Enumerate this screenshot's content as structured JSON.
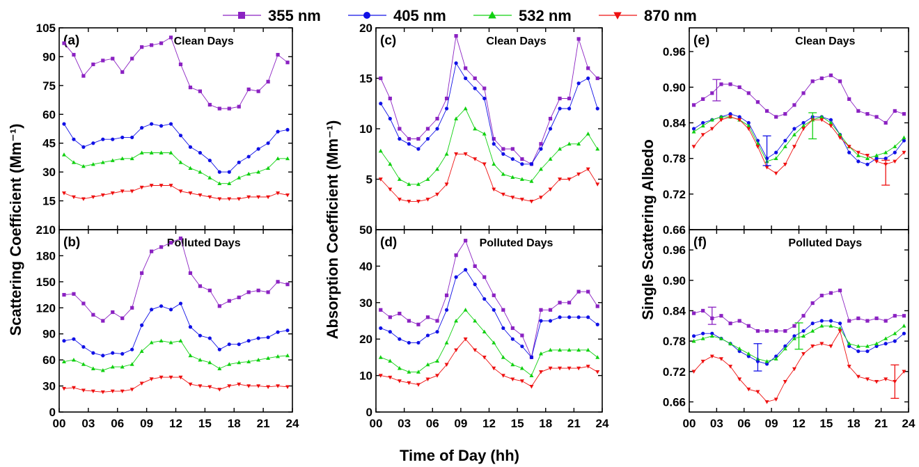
{
  "figure": {
    "xlabel": "Time of Day (hh)",
    "legend": [
      {
        "name": "355 nm",
        "color": "#8B22C2",
        "marker": "square"
      },
      {
        "name": "405 nm",
        "color": "#1010E6",
        "marker": "circle"
      },
      {
        "name": "532 nm",
        "color": "#10D010",
        "marker": "triangle-up"
      },
      {
        "name": "870 nm",
        "color": "#EE1010",
        "marker": "triangle-down"
      }
    ]
  },
  "chart_data": [
    {
      "type": "line",
      "panel": "(a)",
      "annotation": "Clean Days",
      "ylabel": "Scattering Coefficient (Mm⁻¹)",
      "xlim": [
        0,
        24
      ],
      "ylim": [
        0,
        105
      ],
      "xticks": [
        "00",
        "03",
        "06",
        "09",
        "12",
        "15",
        "18",
        "21",
        "24"
      ],
      "yticks": [
        "15",
        "30",
        "45",
        "60",
        "75",
        "90",
        "105"
      ],
      "x": [
        0.5,
        1.5,
        2.5,
        3.5,
        4.5,
        5.5,
        6.5,
        7.5,
        8.5,
        9.5,
        10.5,
        11.5,
        12.5,
        13.5,
        14.5,
        15.5,
        16.5,
        17.5,
        18.5,
        19.5,
        20.5,
        21.5,
        22.5,
        23.5
      ],
      "series": [
        {
          "name": "355 nm",
          "values": [
            97,
            91,
            80,
            86,
            88,
            89,
            82,
            89,
            95,
            96,
            97,
            100,
            86,
            74,
            72,
            65,
            63,
            63,
            64,
            73,
            72,
            77,
            91,
            87
          ]
        },
        {
          "name": "405 nm",
          "values": [
            55,
            47,
            43,
            45,
            47,
            47,
            48,
            48,
            53,
            55,
            54,
            55,
            49,
            43,
            40,
            36,
            30,
            30,
            35,
            38,
            42,
            45,
            51,
            52
          ]
        },
        {
          "name": "532 nm",
          "values": [
            39,
            35,
            33,
            34,
            35,
            36,
            37,
            37,
            40,
            40,
            40,
            40,
            35,
            32,
            30,
            27,
            24,
            24,
            27,
            29,
            30,
            32,
            37,
            37
          ]
        },
        {
          "name": "870 nm",
          "values": [
            19,
            17,
            16,
            17,
            18,
            19,
            20,
            20,
            22,
            23,
            23,
            23,
            20,
            19,
            18,
            17,
            16,
            16,
            16,
            17,
            17,
            17,
            19,
            18
          ]
        }
      ]
    },
    {
      "type": "line",
      "panel": "(b)",
      "annotation": "Polluted Days",
      "xlim": [
        0,
        24
      ],
      "ylim": [
        0,
        210
      ],
      "xticks": [
        "00",
        "03",
        "06",
        "09",
        "12",
        "15",
        "18",
        "21",
        "24"
      ],
      "yticks": [
        "0",
        "30",
        "60",
        "90",
        "120",
        "150",
        "180",
        "210"
      ],
      "x": [
        0.5,
        1.5,
        2.5,
        3.5,
        4.5,
        5.5,
        6.5,
        7.5,
        8.5,
        9.5,
        10.5,
        11.5,
        12.5,
        13.5,
        14.5,
        15.5,
        16.5,
        17.5,
        18.5,
        19.5,
        20.5,
        21.5,
        22.5,
        23.5
      ],
      "series": [
        {
          "name": "355 nm",
          "values": [
            135,
            136,
            125,
            112,
            105,
            115,
            108,
            120,
            160,
            185,
            190,
            195,
            200,
            160,
            145,
            140,
            122,
            128,
            132,
            138,
            140,
            138,
            150,
            147
          ]
        },
        {
          "name": "405 nm",
          "values": [
            82,
            84,
            75,
            68,
            65,
            68,
            67,
            72,
            100,
            118,
            122,
            118,
            125,
            98,
            88,
            85,
            72,
            78,
            78,
            82,
            85,
            86,
            92,
            94
          ]
        },
        {
          "name": "532 nm",
          "values": [
            58,
            60,
            55,
            50,
            48,
            52,
            52,
            55,
            70,
            80,
            82,
            80,
            82,
            65,
            60,
            57,
            50,
            55,
            57,
            58,
            60,
            62,
            64,
            65
          ]
        },
        {
          "name": "870 nm",
          "values": [
            27,
            28,
            25,
            24,
            23,
            24,
            24,
            26,
            33,
            38,
            40,
            40,
            40,
            32,
            30,
            29,
            26,
            30,
            32,
            30,
            30,
            29,
            30,
            29
          ]
        }
      ]
    },
    {
      "type": "line",
      "panel": "(c)",
      "annotation": "Clean Days",
      "ylabel": "Absorption Coefficient (Mm⁻¹)",
      "xlim": [
        0,
        24
      ],
      "ylim": [
        0,
        20
      ],
      "xticks": [
        "00",
        "03",
        "06",
        "09",
        "12",
        "15",
        "18",
        "21",
        "24"
      ],
      "yticks": [
        "5",
        "10",
        "15",
        "20"
      ],
      "x": [
        0.5,
        1.5,
        2.5,
        3.5,
        4.5,
        5.5,
        6.5,
        7.5,
        8.5,
        9.5,
        10.5,
        11.5,
        12.5,
        13.5,
        14.5,
        15.5,
        16.5,
        17.5,
        18.5,
        19.5,
        20.5,
        21.5,
        22.5,
        23.5
      ],
      "series": [
        {
          "name": "355 nm",
          "values": [
            15,
            13,
            10,
            9,
            9,
            10,
            11,
            13,
            19.2,
            16,
            15,
            14,
            9,
            8,
            8,
            7,
            6.5,
            8.5,
            11,
            13,
            13,
            18.9,
            16,
            15
          ]
        },
        {
          "name": "405 nm",
          "values": [
            12.5,
            11,
            9,
            8.5,
            8,
            9,
            10,
            12,
            16.5,
            15,
            14,
            13,
            8.5,
            7.5,
            7,
            6.5,
            6.5,
            8,
            10,
            12,
            12,
            14.5,
            15,
            12
          ]
        },
        {
          "name": "532 nm",
          "values": [
            7.8,
            6.5,
            5,
            4.5,
            4.5,
            5,
            6,
            7.5,
            11,
            12,
            10,
            9.5,
            6.5,
            5.5,
            5.2,
            5,
            4.8,
            6,
            7,
            8,
            8.5,
            8.5,
            9.5,
            8
          ]
        },
        {
          "name": "870 nm",
          "values": [
            5,
            4,
            3,
            2.8,
            2.8,
            3,
            3.5,
            4.5,
            7.5,
            7.5,
            7,
            6.5,
            4,
            3.5,
            3.2,
            3,
            2.8,
            3.2,
            4,
            5,
            5,
            5.5,
            6,
            4.5
          ]
        }
      ]
    },
    {
      "type": "line",
      "panel": "(d)",
      "annotation": "Polluted Days",
      "xlim": [
        0,
        24
      ],
      "ylim": [
        0,
        50
      ],
      "xticks": [
        "00",
        "03",
        "06",
        "09",
        "12",
        "15",
        "18",
        "21",
        "24"
      ],
      "yticks": [
        "0",
        "10",
        "20",
        "30",
        "40",
        "50"
      ],
      "x": [
        0.5,
        1.5,
        2.5,
        3.5,
        4.5,
        5.5,
        6.5,
        7.5,
        8.5,
        9.5,
        10.5,
        11.5,
        12.5,
        13.5,
        14.5,
        15.5,
        16.5,
        17.5,
        18.5,
        19.5,
        20.5,
        21.5,
        22.5,
        23.5
      ],
      "series": [
        {
          "name": "355 nm",
          "values": [
            28,
            26,
            27,
            25,
            24,
            26,
            25,
            32,
            43,
            47,
            40,
            37,
            32,
            28,
            23,
            21,
            15,
            28,
            28,
            30,
            30,
            33,
            33,
            29
          ]
        },
        {
          "name": "405 nm",
          "values": [
            23,
            22,
            20,
            19,
            19,
            21,
            22,
            28,
            37,
            39,
            35,
            31,
            28,
            23,
            20,
            18,
            15,
            25,
            25,
            26,
            26,
            26,
            26,
            24
          ]
        },
        {
          "name": "532 nm",
          "values": [
            15,
            14,
            12,
            11,
            11,
            13,
            14,
            19,
            25,
            28,
            25,
            22,
            19,
            15,
            13,
            12,
            10,
            16,
            17,
            17,
            17,
            17,
            17,
            15
          ]
        },
        {
          "name": "870 nm",
          "values": [
            10,
            9.5,
            8.5,
            8,
            7.5,
            9,
            10,
            13,
            17,
            20,
            17,
            15,
            12,
            10,
            9,
            8.5,
            7,
            11,
            12,
            12,
            12,
            12,
            12.5,
            11
          ]
        }
      ]
    },
    {
      "type": "line",
      "panel": "(e)",
      "annotation": "Clean Days",
      "ylabel": "Single Scattering Albedo",
      "xlim": [
        0,
        24
      ],
      "ylim": [
        0.66,
        1.0
      ],
      "xticks": [
        "00",
        "03",
        "06",
        "09",
        "12",
        "15",
        "18",
        "21",
        "24"
      ],
      "yticks": [
        "0.66",
        "0.72",
        "0.78",
        "0.84",
        "0.90",
        "0.96"
      ],
      "x": [
        0.5,
        1.5,
        2.5,
        3.5,
        4.5,
        5.5,
        6.5,
        7.5,
        8.5,
        9.5,
        10.5,
        11.5,
        12.5,
        13.5,
        14.5,
        15.5,
        16.5,
        17.5,
        18.5,
        19.5,
        20.5,
        21.5,
        22.5,
        23.5
      ],
      "error_bars": [
        {
          "series": "355 nm",
          "x": 3,
          "y": 0.895,
          "err": 0.018
        },
        {
          "series": "405 nm",
          "x": 8.5,
          "y": 0.793,
          "err": 0.025
        },
        {
          "series": "532 nm",
          "x": 13.5,
          "y": 0.835,
          "err": 0.022
        },
        {
          "series": "870 nm",
          "x": 21.5,
          "y": 0.756,
          "err": 0.021
        }
      ],
      "series": [
        {
          "name": "355 nm",
          "values": [
            0.87,
            0.88,
            0.89,
            0.905,
            0.905,
            0.9,
            0.89,
            0.875,
            0.86,
            0.85,
            0.855,
            0.87,
            0.89,
            0.91,
            0.915,
            0.92,
            0.91,
            0.88,
            0.86,
            0.855,
            0.85,
            0.84,
            0.86,
            0.855
          ]
        },
        {
          "name": "405 nm",
          "values": [
            0.83,
            0.84,
            0.845,
            0.85,
            0.855,
            0.85,
            0.84,
            0.81,
            0.78,
            0.79,
            0.81,
            0.83,
            0.84,
            0.85,
            0.85,
            0.845,
            0.82,
            0.79,
            0.775,
            0.77,
            0.78,
            0.78,
            0.79,
            0.81
          ]
        },
        {
          "name": "532 nm",
          "values": [
            0.825,
            0.835,
            0.845,
            0.85,
            0.85,
            0.845,
            0.835,
            0.805,
            0.775,
            0.78,
            0.8,
            0.82,
            0.835,
            0.845,
            0.85,
            0.84,
            0.82,
            0.8,
            0.785,
            0.78,
            0.785,
            0.79,
            0.8,
            0.815
          ]
        },
        {
          "name": "870 nm",
          "values": [
            0.8,
            0.82,
            0.83,
            0.845,
            0.85,
            0.845,
            0.83,
            0.8,
            0.765,
            0.755,
            0.77,
            0.8,
            0.83,
            0.845,
            0.845,
            0.835,
            0.815,
            0.8,
            0.79,
            0.785,
            0.775,
            0.77,
            0.775,
            0.79
          ]
        }
      ]
    },
    {
      "type": "line",
      "panel": "(f)",
      "annotation": "Polluted Days",
      "xlim": [
        0,
        24
      ],
      "ylim": [
        0.64,
        1.0
      ],
      "xticks": [
        "00",
        "03",
        "06",
        "09",
        "12",
        "15",
        "18",
        "21",
        "24"
      ],
      "yticks": [
        "0.66",
        "0.72",
        "0.78",
        "0.84",
        "0.90",
        "0.96"
      ],
      "x": [
        0.5,
        1.5,
        2.5,
        3.5,
        4.5,
        5.5,
        6.5,
        7.5,
        8.5,
        9.5,
        10.5,
        11.5,
        12.5,
        13.5,
        14.5,
        15.5,
        16.5,
        17.5,
        18.5,
        19.5,
        20.5,
        21.5,
        22.5,
        23.5
      ],
      "error_bars": [
        {
          "series": "355 nm",
          "x": 2.5,
          "y": 0.83,
          "err": 0.017
        },
        {
          "series": "405 nm",
          "x": 7.5,
          "y": 0.748,
          "err": 0.027
        },
        {
          "series": "532 nm",
          "x": 12,
          "y": 0.79,
          "err": 0.026
        },
        {
          "series": "870 nm",
          "x": 22.5,
          "y": 0.7,
          "err": 0.033
        }
      ],
      "series": [
        {
          "name": "355 nm",
          "values": [
            0.835,
            0.84,
            0.825,
            0.83,
            0.815,
            0.82,
            0.81,
            0.8,
            0.8,
            0.8,
            0.8,
            0.81,
            0.83,
            0.855,
            0.87,
            0.875,
            0.88,
            0.82,
            0.825,
            0.82,
            0.825,
            0.82,
            0.83,
            0.83
          ]
        },
        {
          "name": "405 nm",
          "values": [
            0.79,
            0.795,
            0.795,
            0.785,
            0.775,
            0.76,
            0.75,
            0.74,
            0.735,
            0.75,
            0.77,
            0.79,
            0.8,
            0.815,
            0.82,
            0.82,
            0.815,
            0.77,
            0.76,
            0.76,
            0.77,
            0.775,
            0.78,
            0.795
          ]
        },
        {
          "name": "532 nm",
          "values": [
            0.78,
            0.785,
            0.79,
            0.785,
            0.775,
            0.765,
            0.755,
            0.745,
            0.74,
            0.745,
            0.765,
            0.785,
            0.79,
            0.8,
            0.81,
            0.81,
            0.805,
            0.775,
            0.77,
            0.77,
            0.775,
            0.785,
            0.795,
            0.81
          ]
        },
        {
          "name": "870 nm",
          "values": [
            0.72,
            0.74,
            0.75,
            0.745,
            0.73,
            0.705,
            0.685,
            0.68,
            0.66,
            0.665,
            0.7,
            0.725,
            0.755,
            0.77,
            0.775,
            0.77,
            0.8,
            0.73,
            0.71,
            0.705,
            0.7,
            0.705,
            0.7,
            0.72
          ]
        }
      ]
    }
  ]
}
